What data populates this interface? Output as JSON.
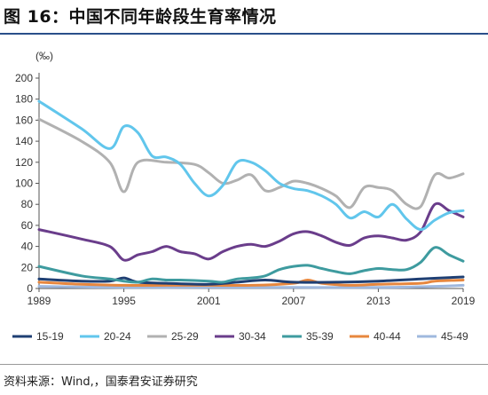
{
  "figure": {
    "title": "图 16：中国不同年龄段生育率情况",
    "source": "资料来源：Wind,，国泰君安证券研究"
  },
  "chart_data": {
    "type": "line",
    "unit_label": "(‰)",
    "xlim": [
      1989,
      2019
    ],
    "ylim": [
      0,
      200
    ],
    "x_ticks": [
      1989,
      1995,
      2001,
      2007,
      2013,
      2019
    ],
    "y_ticks": [
      0,
      20,
      40,
      60,
      80,
      100,
      120,
      140,
      160,
      180,
      200
    ],
    "grid": false,
    "legend_position": "bottom",
    "series": [
      {
        "name": "15-19",
        "color": "#1f3f73",
        "points": [
          [
            1989,
            9
          ],
          [
            1992,
            7
          ],
          [
            1994,
            7
          ],
          [
            1995,
            10
          ],
          [
            1996,
            6
          ],
          [
            1998,
            5
          ],
          [
            2001,
            4
          ],
          [
            2003,
            6
          ],
          [
            2005,
            8
          ],
          [
            2007,
            6
          ],
          [
            2010,
            6
          ],
          [
            2013,
            7
          ],
          [
            2016,
            9
          ],
          [
            2019,
            11
          ]
        ]
      },
      {
        "name": "20-24",
        "color": "#61c6ec",
        "points": [
          [
            1989,
            178
          ],
          [
            1992,
            152
          ],
          [
            1994,
            133
          ],
          [
            1995,
            154
          ],
          [
            1996,
            148
          ],
          [
            1997,
            126
          ],
          [
            1998,
            125
          ],
          [
            1999,
            118
          ],
          [
            2000,
            100
          ],
          [
            2001,
            88
          ],
          [
            2002,
            98
          ],
          [
            2003,
            120
          ],
          [
            2004,
            120
          ],
          [
            2005,
            112
          ],
          [
            2006,
            100
          ],
          [
            2007,
            95
          ],
          [
            2008,
            93
          ],
          [
            2009,
            88
          ],
          [
            2010,
            80
          ],
          [
            2011,
            67
          ],
          [
            2012,
            73
          ],
          [
            2013,
            68
          ],
          [
            2014,
            80
          ],
          [
            2015,
            66
          ],
          [
            2016,
            56
          ],
          [
            2017,
            65
          ],
          [
            2018,
            72
          ],
          [
            2019,
            74
          ]
        ]
      },
      {
        "name": "25-29",
        "color": "#b1b1b1",
        "points": [
          [
            1989,
            161
          ],
          [
            1992,
            140
          ],
          [
            1994,
            120
          ],
          [
            1995,
            92
          ],
          [
            1996,
            120
          ],
          [
            1998,
            120
          ],
          [
            2000,
            118
          ],
          [
            2001,
            110
          ],
          [
            2002,
            100
          ],
          [
            2003,
            103
          ],
          [
            2004,
            108
          ],
          [
            2005,
            93
          ],
          [
            2006,
            96
          ],
          [
            2007,
            102
          ],
          [
            2008,
            100
          ],
          [
            2009,
            95
          ],
          [
            2010,
            88
          ],
          [
            2011,
            77
          ],
          [
            2012,
            96
          ],
          [
            2013,
            96
          ],
          [
            2014,
            93
          ],
          [
            2015,
            80
          ],
          [
            2016,
            78
          ],
          [
            2017,
            108
          ],
          [
            2018,
            105
          ],
          [
            2019,
            109
          ]
        ]
      },
      {
        "name": "30-34",
        "color": "#6a3d8b",
        "points": [
          [
            1989,
            56
          ],
          [
            1992,
            47
          ],
          [
            1994,
            40
          ],
          [
            1995,
            27
          ],
          [
            1996,
            32
          ],
          [
            1997,
            35
          ],
          [
            1998,
            40
          ],
          [
            1999,
            35
          ],
          [
            2000,
            33
          ],
          [
            2001,
            28
          ],
          [
            2002,
            35
          ],
          [
            2003,
            40
          ],
          [
            2004,
            42
          ],
          [
            2005,
            40
          ],
          [
            2006,
            45
          ],
          [
            2007,
            52
          ],
          [
            2008,
            54
          ],
          [
            2009,
            50
          ],
          [
            2010,
            44
          ],
          [
            2011,
            41
          ],
          [
            2012,
            48
          ],
          [
            2013,
            50
          ],
          [
            2014,
            48
          ],
          [
            2015,
            46
          ],
          [
            2016,
            54
          ],
          [
            2017,
            80
          ],
          [
            2018,
            74
          ],
          [
            2019,
            68
          ]
        ]
      },
      {
        "name": "35-39",
        "color": "#3e9b9f",
        "points": [
          [
            1989,
            21
          ],
          [
            1992,
            12
          ],
          [
            1994,
            9
          ],
          [
            1995,
            7
          ],
          [
            1996,
            6
          ],
          [
            1997,
            9
          ],
          [
            1998,
            8
          ],
          [
            1999,
            8
          ],
          [
            2001,
            7
          ],
          [
            2002,
            6
          ],
          [
            2003,
            9
          ],
          [
            2004,
            10
          ],
          [
            2005,
            12
          ],
          [
            2006,
            18
          ],
          [
            2007,
            21
          ],
          [
            2008,
            22
          ],
          [
            2009,
            19
          ],
          [
            2010,
            16
          ],
          [
            2011,
            14
          ],
          [
            2012,
            17
          ],
          [
            2013,
            19
          ],
          [
            2014,
            18
          ],
          [
            2015,
            18
          ],
          [
            2016,
            25
          ],
          [
            2017,
            39
          ],
          [
            2018,
            32
          ],
          [
            2019,
            26
          ]
        ]
      },
      {
        "name": "40-44",
        "color": "#e7873e",
        "points": [
          [
            1989,
            6
          ],
          [
            1992,
            4
          ],
          [
            1995,
            3
          ],
          [
            1998,
            3
          ],
          [
            2001,
            3
          ],
          [
            2004,
            3
          ],
          [
            2007,
            5
          ],
          [
            2008,
            8
          ],
          [
            2009,
            5
          ],
          [
            2011,
            3
          ],
          [
            2013,
            4
          ],
          [
            2016,
            5
          ],
          [
            2017,
            7
          ],
          [
            2019,
            8
          ]
        ]
      },
      {
        "name": "45-49",
        "color": "#9fb8de",
        "points": [
          [
            1989,
            2
          ],
          [
            1995,
            1
          ],
          [
            2001,
            1
          ],
          [
            2007,
            1
          ],
          [
            2013,
            1
          ],
          [
            2017,
            2
          ],
          [
            2019,
            3
          ]
        ]
      }
    ]
  }
}
